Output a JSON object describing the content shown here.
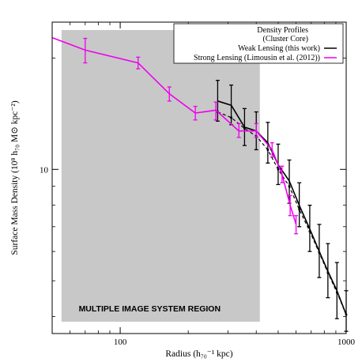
{
  "chart_data": {
    "type": "line",
    "xlabel": "Radius (h₇₀⁻¹ kpc)",
    "ylabel": "Surface Mass Density (10⁸ h₇₀ M⊙ kpc⁻²)",
    "x_scale": "log",
    "y_scale": "log",
    "xlim": [
      50,
      1000
    ],
    "ylim": [
      3.6,
      25
    ],
    "x_ticks": [
      100,
      1000
    ],
    "x_tick_labels": [
      "100",
      "1000"
    ],
    "y_ticks": [
      10
    ],
    "y_tick_labels": [
      "10"
    ],
    "grid": false,
    "legend_position": "top-right",
    "legend_title": [
      "Density Profiles",
      "(Cluster Core)"
    ],
    "shaded_region": {
      "label": "MULTIPLE IMAGE SYSTEM REGION",
      "x_range": [
        55,
        415
      ],
      "color": "#c8c8c8"
    },
    "series": [
      {
        "name": "Weak Lensing (this work)",
        "color": "#000000",
        "style": "solid",
        "points": [
          {
            "x": 270,
            "y": 15.3,
            "yerr": [
              13.5,
              17.4
            ]
          },
          {
            "x": 310,
            "y": 14.9,
            "yerr": [
              13.2,
              16.9
            ]
          },
          {
            "x": 355,
            "y": 13.0,
            "yerr": [
              11.6,
              14.6
            ]
          },
          {
            "x": 400,
            "y": 12.7,
            "yerr": [
              11.3,
              14.3
            ]
          },
          {
            "x": 450,
            "y": 11.8,
            "yerr": [
              10.4,
              13.4
            ]
          },
          {
            "x": 500,
            "y": 10.3,
            "yerr": [
              9.1,
              11.7
            ]
          },
          {
            "x": 560,
            "y": 9.3,
            "yerr": [
              8.1,
              10.6
            ]
          },
          {
            "x": 620,
            "y": 8.0,
            "yerr": [
              7.0,
              9.2
            ]
          },
          {
            "x": 690,
            "y": 6.9,
            "yerr": [
              6.0,
              8.0
            ]
          },
          {
            "x": 760,
            "y": 6.0,
            "yerr": [
              5.1,
              7.1
            ]
          },
          {
            "x": 830,
            "y": 5.3,
            "yerr": [
              4.5,
              6.3
            ]
          },
          {
            "x": 910,
            "y": 4.7,
            "yerr": [
              3.95,
              5.6
            ]
          },
          {
            "x": 1000,
            "y": 4.05,
            "yerr": [
              3.65,
              4.7
            ]
          }
        ]
      },
      {
        "name": "",
        "color": "#000000",
        "style": "dashed",
        "points": [
          {
            "x": 270,
            "y": 14.3
          },
          {
            "x": 310,
            "y": 13.8
          },
          {
            "x": 355,
            "y": 12.9
          },
          {
            "x": 400,
            "y": 12.3
          },
          {
            "x": 450,
            "y": 11.3
          },
          {
            "x": 500,
            "y": 10.0
          },
          {
            "x": 560,
            "y": 9.0
          },
          {
            "x": 620,
            "y": 7.8
          },
          {
            "x": 690,
            "y": 6.8
          },
          {
            "x": 760,
            "y": 5.95
          },
          {
            "x": 830,
            "y": 5.25
          },
          {
            "x": 910,
            "y": 4.65
          },
          {
            "x": 1000,
            "y": 4.05
          }
        ]
      },
      {
        "name": "Strong Lensing (Limousin et al. (2012))",
        "color": "#ee00ee",
        "style": "solid",
        "points": [
          {
            "x": 50,
            "y": 22.7
          },
          {
            "x": 70,
            "y": 21.0,
            "yerr": [
              19.4,
              22.6
            ]
          },
          {
            "x": 120,
            "y": 19.4,
            "yerr": [
              18.7,
              20.1
            ]
          },
          {
            "x": 165,
            "y": 16.0,
            "yerr": [
              15.3,
              16.7
            ]
          },
          {
            "x": 215,
            "y": 14.2,
            "yerr": [
              13.6,
              14.8
            ]
          },
          {
            "x": 265,
            "y": 14.45,
            "yerr": [
              13.6,
              15.2
            ]
          },
          {
            "x": 335,
            "y": 12.7,
            "yerr": [
              12.2,
              13.3
            ]
          },
          {
            "x": 400,
            "y": 12.7,
            "yerr": [
              12.2,
              13.3
            ]
          },
          {
            "x": 470,
            "y": 11.3,
            "yerr": [
              10.8,
              11.8
            ]
          },
          {
            "x": 520,
            "y": 9.7,
            "yerr": [
              9.2,
              10.2
            ]
          },
          {
            "x": 565,
            "y": 8.0,
            "yerr": [
              7.5,
              8.5
            ]
          },
          {
            "x": 600,
            "y": 7.1,
            "yerr": [
              6.7,
              7.5
            ]
          }
        ]
      }
    ]
  }
}
